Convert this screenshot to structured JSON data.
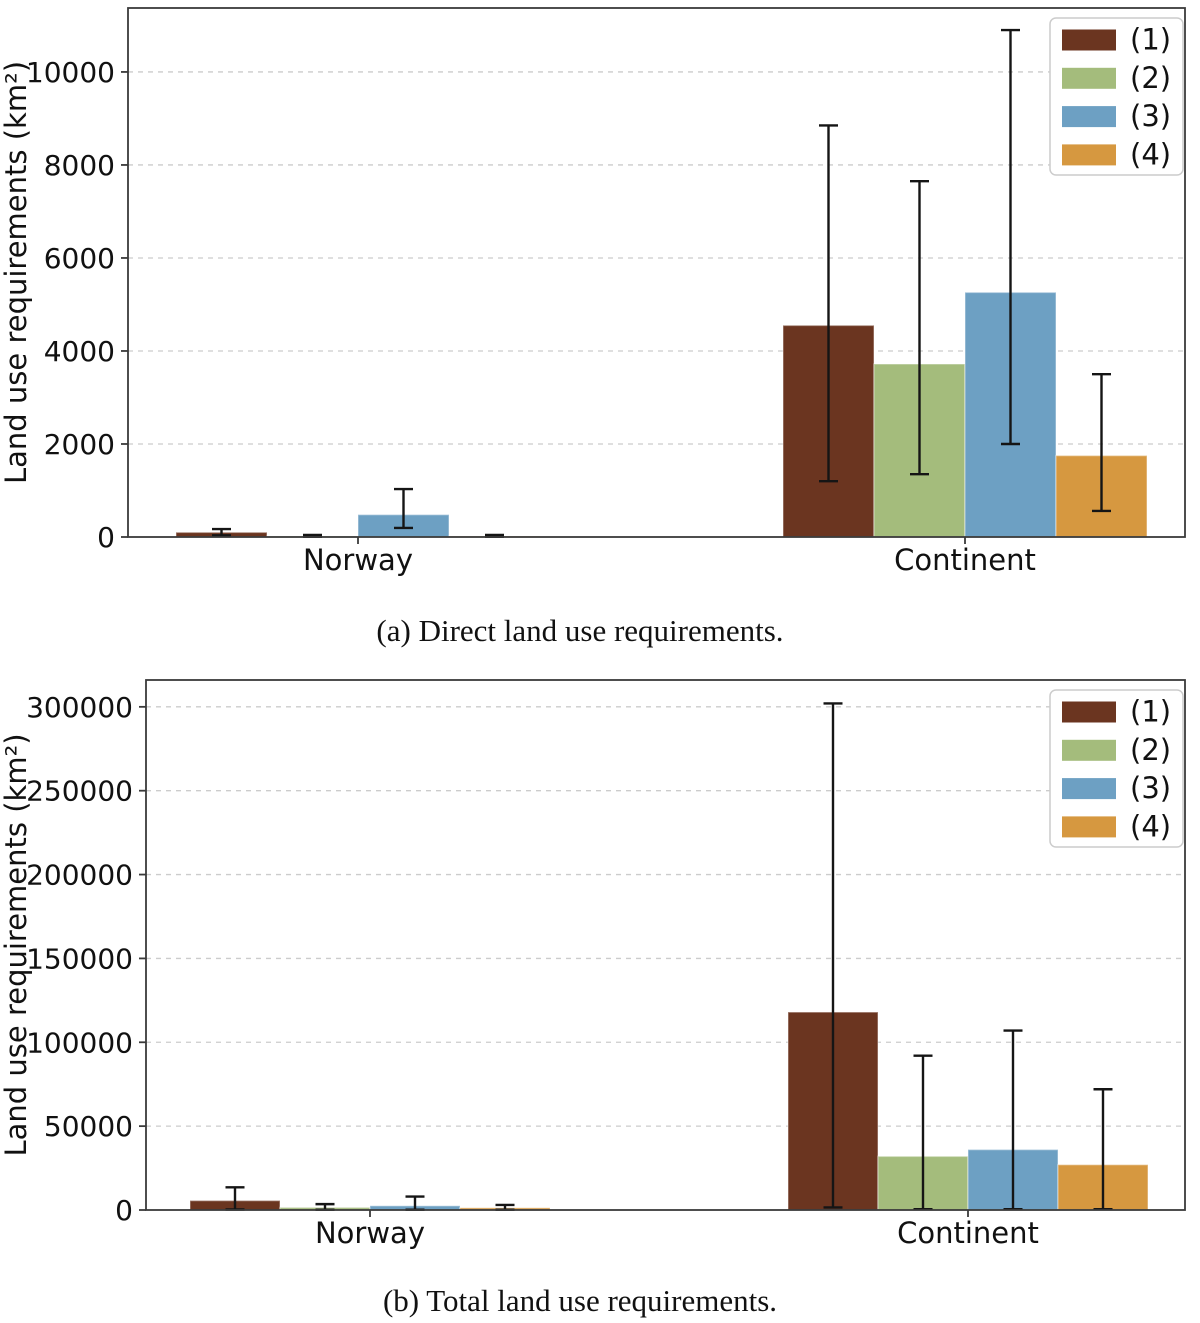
{
  "figure": {
    "caption_a": "(a) Direct land use requirements.",
    "caption_b": "(b) Total land use requirements."
  },
  "colors": {
    "series": [
      "#6B3520",
      "#A4BC7C",
      "#6DA0C3",
      "#D69840"
    ],
    "grid": "#cccccc",
    "axis": "#3a3a3a",
    "error": "#151515",
    "legend_border": "#cccccc",
    "background": "#ffffff"
  },
  "chart_data": [
    {
      "id": "direct",
      "type": "bar",
      "title": "(a) Direct land use requirements.",
      "ylabel": "Land use requirements (km²)",
      "xlabel": "",
      "categories": [
        "Norway",
        "Continent"
      ],
      "legend_entries": [
        "(1)",
        "(2)",
        "(3)",
        "(4)"
      ],
      "legend_position": "upper right",
      "grid": "horizontal dashed",
      "ylim": [
        0,
        11375
      ],
      "yticks": [
        0,
        2000,
        4000,
        6000,
        8000,
        10000
      ],
      "series": [
        {
          "name": "(1)",
          "values": [
            100,
            4550
          ],
          "err_low": [
            35,
            1200
          ],
          "err_high": [
            170,
            8850
          ]
        },
        {
          "name": "(2)",
          "values": [
            15,
            3720
          ],
          "err_low": [
            5,
            1350
          ],
          "err_high": [
            45,
            7650
          ]
        },
        {
          "name": "(3)",
          "values": [
            480,
            5260
          ],
          "err_low": [
            195,
            2000
          ],
          "err_high": [
            1030,
            10900
          ]
        },
        {
          "name": "(4)",
          "values": [
            15,
            1750
          ],
          "err_low": [
            5,
            560
          ],
          "err_high": [
            45,
            3500
          ]
        }
      ]
    },
    {
      "id": "total",
      "type": "bar",
      "title": "(b) Total land use requirements.",
      "ylabel": "Land use requirements (km²)",
      "xlabel": "",
      "categories": [
        "Norway",
        "Continent"
      ],
      "legend_entries": [
        "(1)",
        "(2)",
        "(3)",
        "(4)"
      ],
      "legend_position": "upper right",
      "grid": "horizontal dashed",
      "ylim": [
        0,
        316000
      ],
      "yticks": [
        0,
        50000,
        100000,
        150000,
        200000,
        250000,
        300000
      ],
      "series": [
        {
          "name": "(1)",
          "values": [
            5600,
            118000
          ],
          "err_low": [
            300,
            1500
          ],
          "err_high": [
            13500,
            302000
          ]
        },
        {
          "name": "(2)",
          "values": [
            1500,
            32000
          ],
          "err_low": [
            150,
            500
          ],
          "err_high": [
            3500,
            92000
          ]
        },
        {
          "name": "(3)",
          "values": [
            2500,
            36000
          ],
          "err_low": [
            150,
            500
          ],
          "err_high": [
            8000,
            107000
          ]
        },
        {
          "name": "(4)",
          "values": [
            1300,
            27000
          ],
          "err_low": [
            150,
            500
          ],
          "err_high": [
            3000,
            72000
          ]
        }
      ]
    }
  ]
}
